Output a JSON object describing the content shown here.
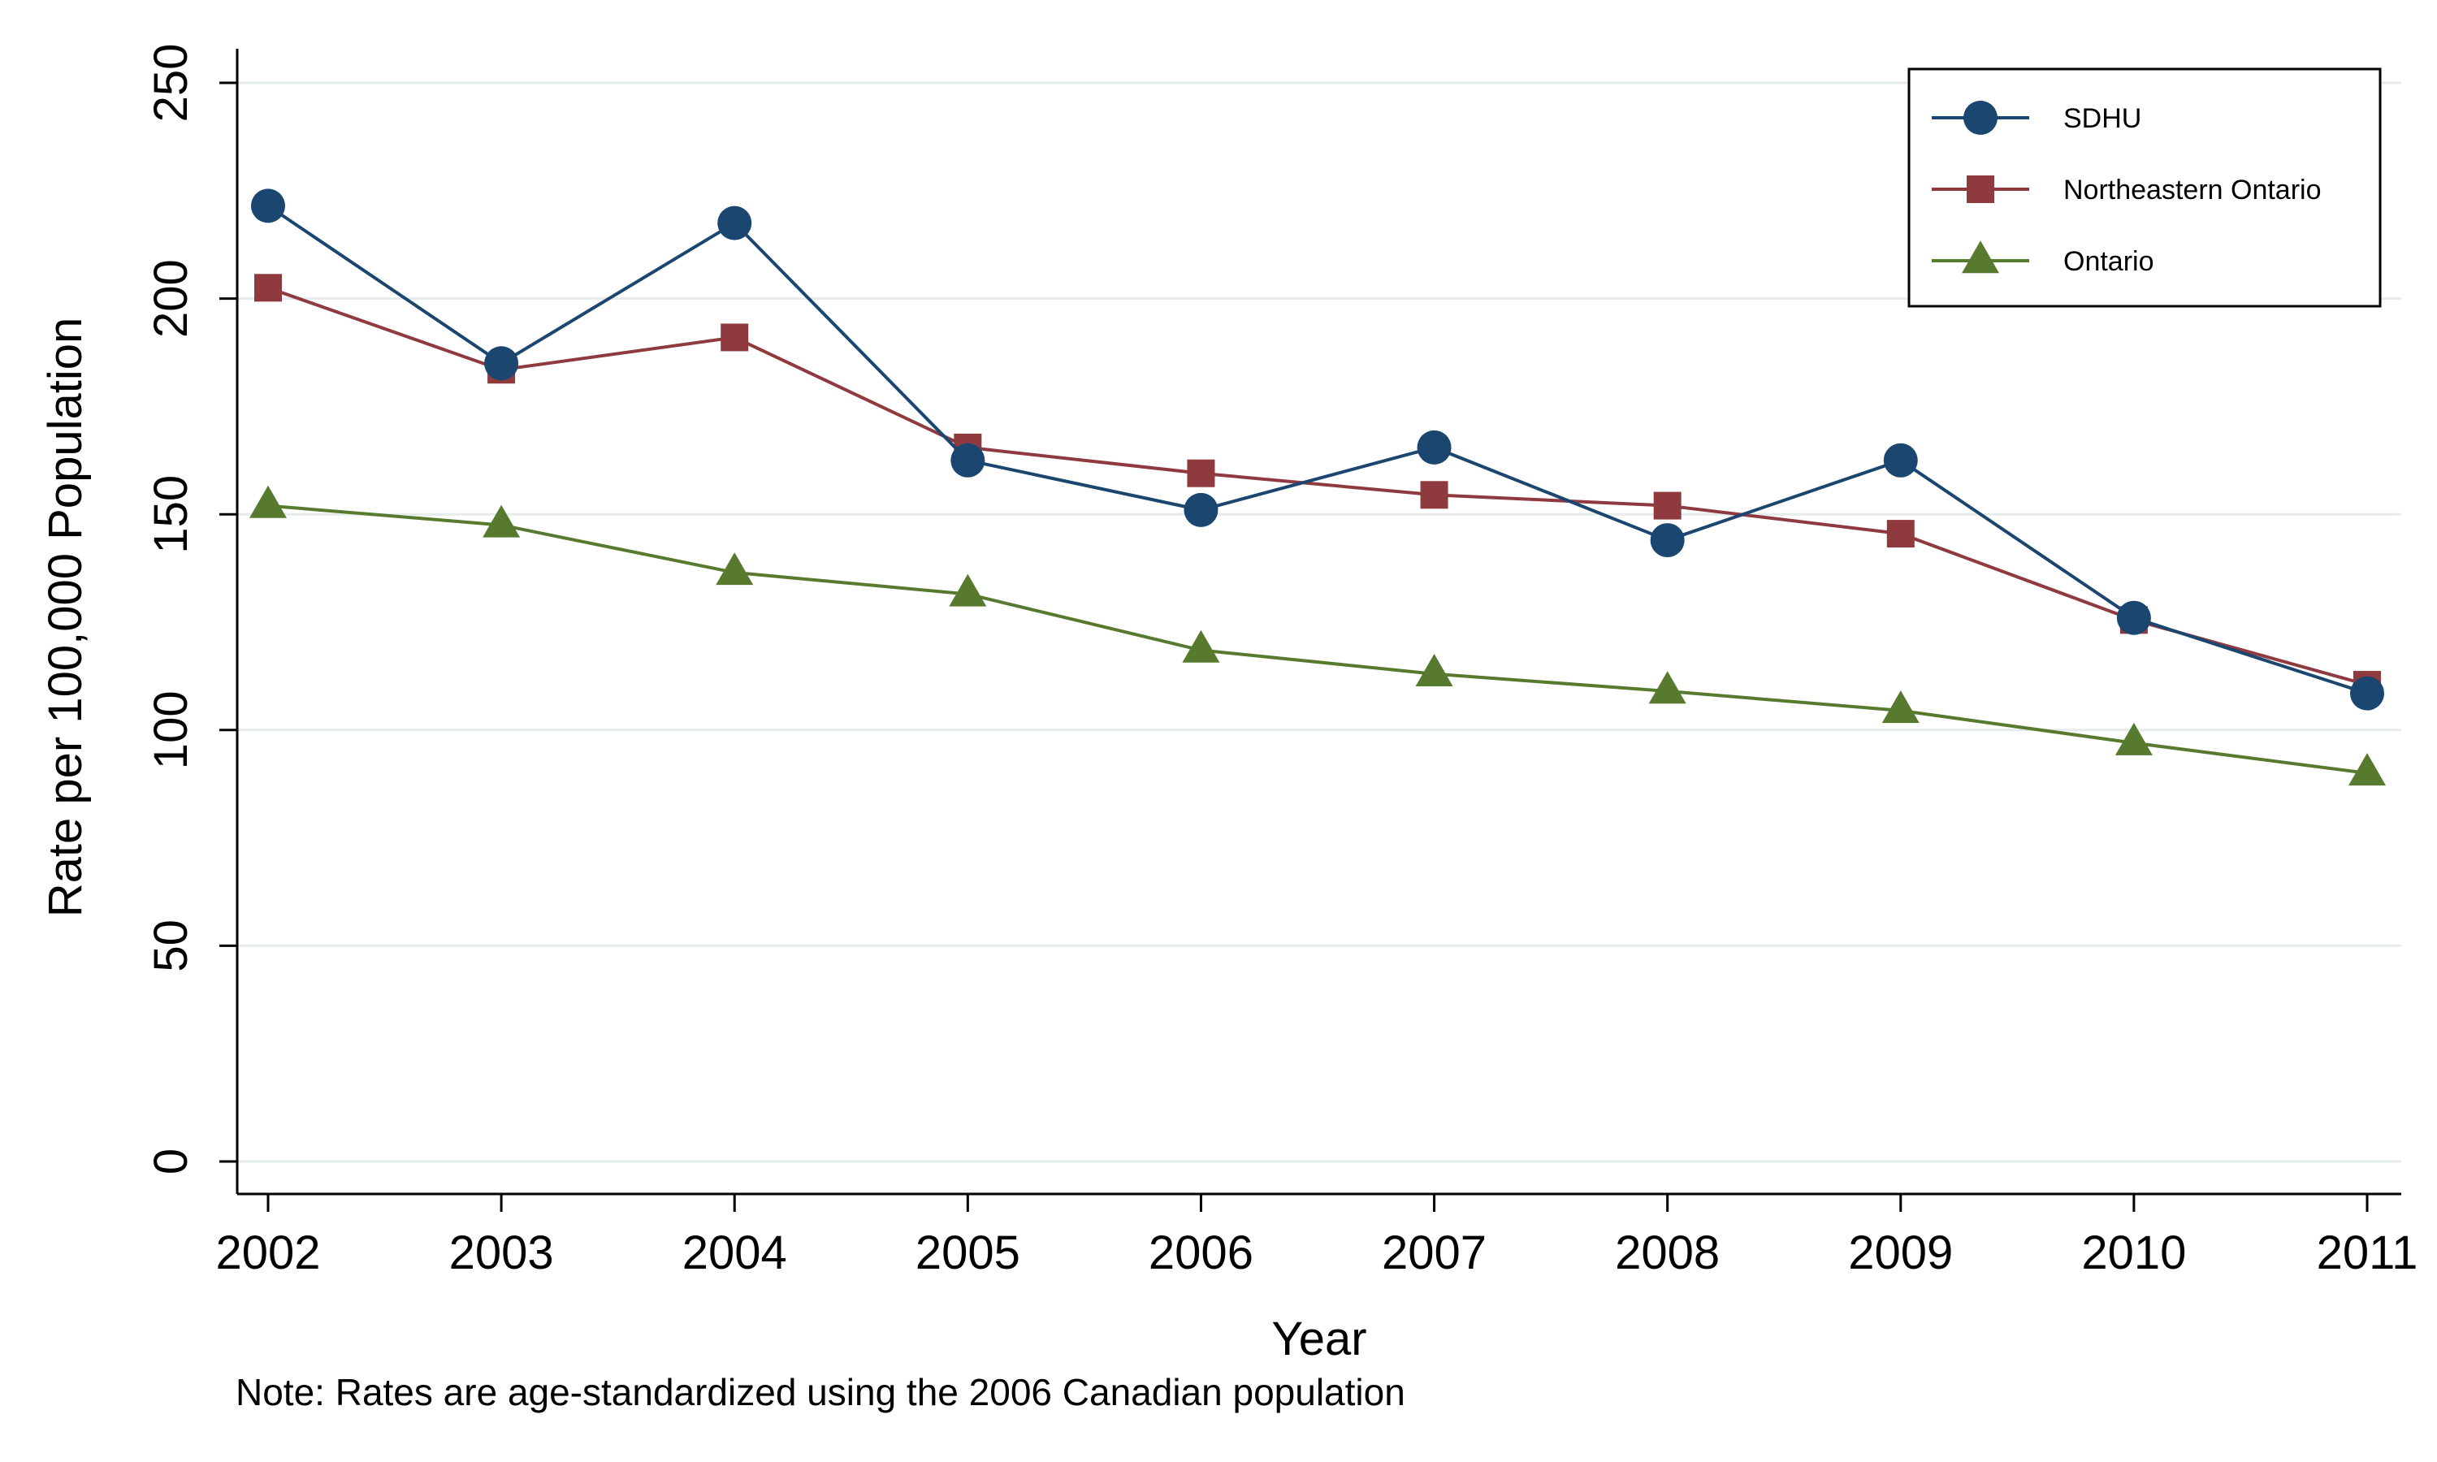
{
  "chart_data": {
    "type": "line",
    "title": "",
    "xlabel": "Year",
    "ylabel": "Rate per 100,000 Population",
    "ylim": [
      0,
      250
    ],
    "yticks": [
      0,
      50,
      100,
      150,
      200,
      250
    ],
    "grid": true,
    "legend_position": "top-right",
    "x": [
      "2002",
      "2003",
      "2004",
      "2005",
      "2006",
      "2007",
      "2008",
      "2009",
      "2010",
      "2011"
    ],
    "series": [
      {
        "name": "SDHU",
        "marker": "circle",
        "color": "#1a4670",
        "values": [
          221.5,
          185,
          217.5,
          162.5,
          151,
          165.5,
          144,
          162.5,
          126,
          108.5
        ]
      },
      {
        "name": "Northeastern Ontario",
        "marker": "square",
        "color": "#8e3a3f",
        "values": [
          202.5,
          183.5,
          191,
          165.5,
          159.5,
          154.5,
          152,
          145.5,
          125.5,
          110.5
        ]
      },
      {
        "name": "Ontario",
        "marker": "triangle",
        "color": "#577a2e",
        "values": [
          152,
          147.5,
          136.5,
          131.5,
          118.5,
          113,
          109,
          104.5,
          97,
          90
        ]
      }
    ],
    "note": "Note: Rates are age-standardized using the 2006 Canadian population"
  }
}
